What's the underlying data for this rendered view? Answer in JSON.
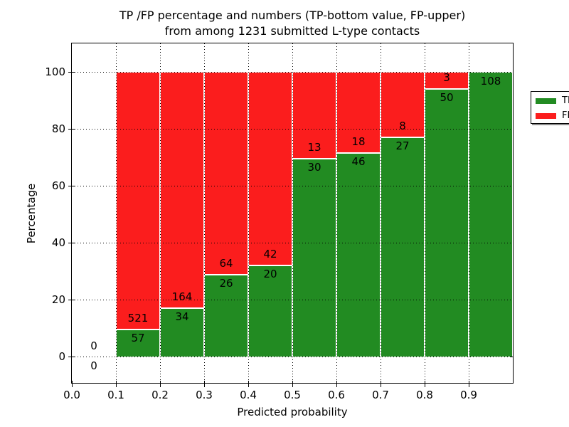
{
  "chart_data": {
    "type": "bar",
    "stacked": true,
    "title_lines": [
      "TP /FP percentage and numbers (TP-bottom value, FP-upper)",
      "from among 1231 submitted L-type contacts"
    ],
    "xlabel": "Predicted probability",
    "ylabel": "Percentage",
    "xlim": [
      0.0,
      1.0
    ],
    "ylim": [
      -10,
      110
    ],
    "x_tick_labels": [
      "0.0",
      "0.1",
      "0.2",
      "0.3",
      "0.4",
      "0.5",
      "0.6",
      "0.7",
      "0.8",
      "0.9"
    ],
    "y_tick_values": [
      0,
      20,
      40,
      60,
      80,
      100
    ],
    "grid": "dotted",
    "bin_edges": [
      0.0,
      0.1,
      0.2,
      0.3,
      0.4,
      0.5,
      0.6,
      0.7,
      0.8,
      0.9,
      1.0
    ],
    "series": [
      {
        "name": "TP",
        "color": "#228B22",
        "counts": [
          0,
          57,
          34,
          26,
          20,
          30,
          46,
          27,
          50,
          108
        ]
      },
      {
        "name": "FP",
        "color": "#FB1D1D",
        "counts": [
          0,
          521,
          164,
          64,
          42,
          13,
          18,
          8,
          3,
          0
        ]
      }
    ],
    "bar_value_semantics": "bar heights are percentage of bin total; printed numbers are raw counts (TP below boundary, FP above)",
    "total_submitted": 1231,
    "legend": {
      "position": "upper right",
      "entries": [
        "TP",
        "FP"
      ]
    }
  }
}
